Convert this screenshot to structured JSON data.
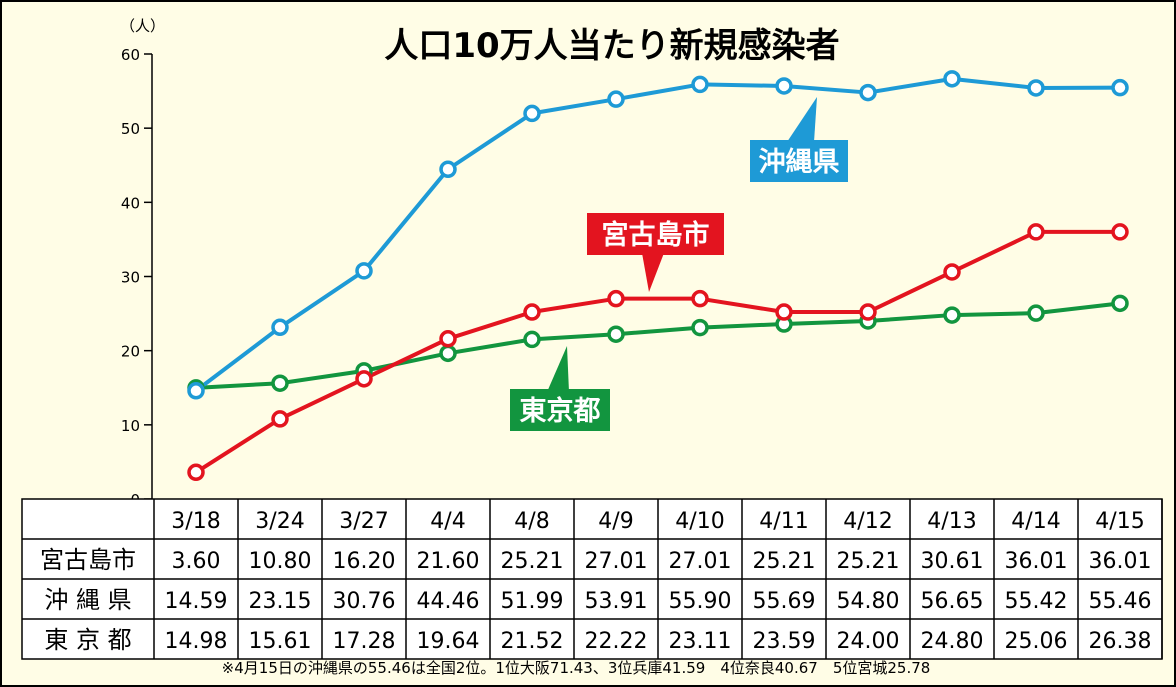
{
  "chart_data": {
    "type": "line",
    "title": "人口10万人当たり新規感染者",
    "ylabel": "（人）",
    "ylim": [
      0,
      60
    ],
    "yticks": [
      "0",
      "10",
      "20",
      "30",
      "40",
      "50",
      "60"
    ],
    "categories": [
      "3/18",
      "3/24",
      "3/27",
      "4/4",
      "4/8",
      "4/9",
      "4/10",
      "4/11",
      "4/12",
      "4/13",
      "4/14",
      "4/15"
    ],
    "series": [
      {
        "name": "宮古島市",
        "table_label": "宮古島市",
        "color": "#e3141f",
        "values": [
          3.6,
          10.8,
          16.2,
          21.6,
          25.21,
          27.01,
          27.01,
          25.21,
          25.21,
          30.61,
          36.01,
          36.01
        ],
        "labels": [
          "3.60",
          "10.80",
          "16.20",
          "21.60",
          "25.21",
          "27.01",
          "27.01",
          "25.21",
          "25.21",
          "30.61",
          "36.01",
          "36.01"
        ]
      },
      {
        "name": "沖縄県",
        "table_label": "沖 縄 県",
        "color": "#1e9ad6",
        "values": [
          14.59,
          23.15,
          30.76,
          44.46,
          51.99,
          53.91,
          55.9,
          55.69,
          54.8,
          56.65,
          55.42,
          55.46
        ],
        "labels": [
          "14.59",
          "23.15",
          "30.76",
          "44.46",
          "51.99",
          "53.91",
          "55.90",
          "55.69",
          "54.80",
          "56.65",
          "55.42",
          "55.46"
        ]
      },
      {
        "name": "東京都",
        "table_label": "東 京 都",
        "color": "#12953f",
        "values": [
          14.98,
          15.61,
          17.28,
          19.64,
          21.52,
          22.22,
          23.11,
          23.59,
          24.0,
          24.8,
          25.06,
          26.38
        ],
        "labels": [
          "14.98",
          "15.61",
          "17.28",
          "19.64",
          "21.52",
          "22.22",
          "23.11",
          "23.59",
          "24.00",
          "24.80",
          "25.06",
          "26.38"
        ]
      }
    ],
    "grid": false,
    "legend": "callouts"
  },
  "footnote": "※4月15日の沖縄県の55.46は全国2位。1位大阪71.43、3位兵庫41.59　4位奈良40.67　5位宮城25.78"
}
